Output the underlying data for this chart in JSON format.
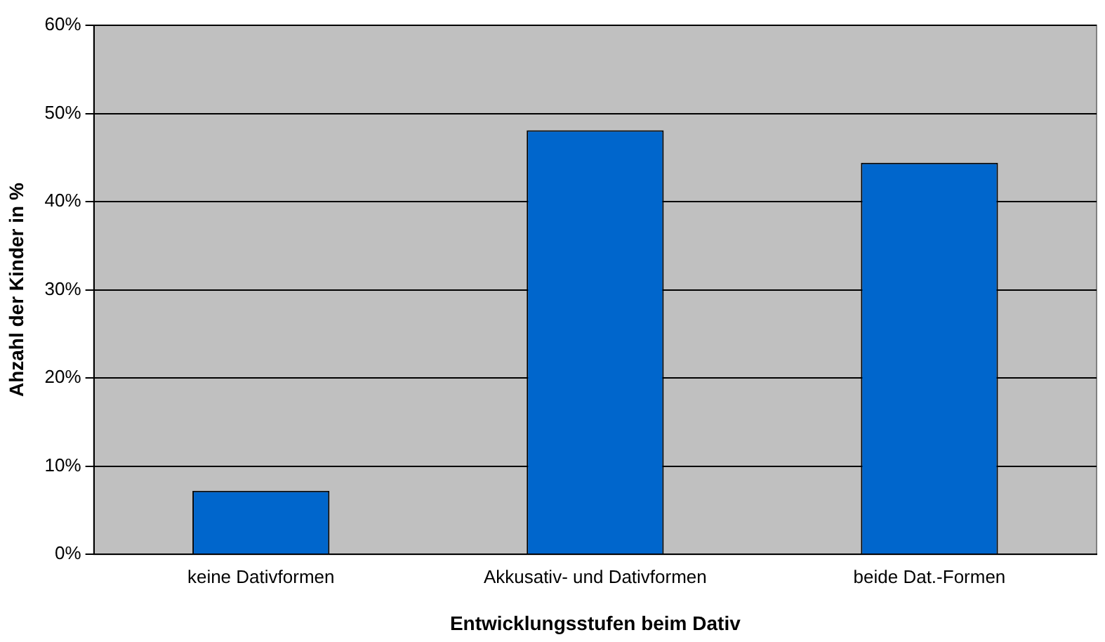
{
  "chart_data": {
    "type": "bar",
    "xlabel": "Entwicklungsstufen beim Dativ",
    "ylabel": "Ahzahl der Kinder in %",
    "categories": [
      "keine Dativformen",
      "Akkusativ- und Dativformen",
      "beide Dat.-Formen"
    ],
    "values": [
      7.2,
      48.1,
      44.4
    ],
    "color": "#0066cc",
    "ylim": [
      0,
      60
    ],
    "yticks": [
      {
        "value": 0,
        "label": "0%"
      },
      {
        "value": 10,
        "label": "10%"
      },
      {
        "value": 20,
        "label": "20%"
      },
      {
        "value": 30,
        "label": "30%"
      },
      {
        "value": 40,
        "label": "40%"
      },
      {
        "value": 50,
        "label": "50%"
      },
      {
        "value": 60,
        "label": "60%"
      }
    ],
    "grid": "y",
    "legend": false
  }
}
